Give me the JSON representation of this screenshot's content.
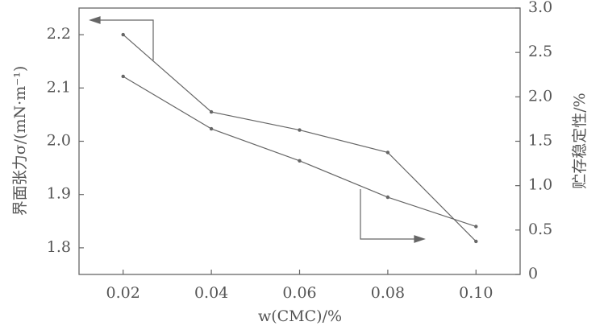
{
  "chart_data": {
    "type": "line",
    "x_label": "w(CMC)/%",
    "y_label": "界面张力σ/(mN·m⁻¹)",
    "y2_label": "贮存稳定性/%",
    "x": [
      0.02,
      0.04,
      0.06,
      0.08,
      0.1
    ],
    "xlim": [
      0.01,
      0.11
    ],
    "xticks": [
      0.02,
      0.04,
      0.06,
      0.08,
      {
        "value": 0.1,
        "label": "0.10"
      }
    ],
    "ylim": [
      1.75,
      2.25
    ],
    "yticks": [
      1.8,
      1.9,
      {
        "value": 2,
        "label": "2.0"
      },
      2.1,
      2.2
    ],
    "y2lim": [
      0,
      3
    ],
    "y2ticks": [
      0,
      0.5,
      {
        "value": 1,
        "label": "1.0"
      },
      1.5,
      {
        "value": 2,
        "label": "2.0"
      },
      2.5,
      {
        "value": 3,
        "label": "3.0"
      }
    ],
    "series": [
      {
        "color": "#666666",
        "values": [
          2.2,
          2.055,
          2.021,
          1.979,
          1.812
        ]
      },
      {
        "color": "#666666",
        "axis": "y2",
        "values": [
          2.23,
          1.64,
          1.28,
          0.87,
          0.54
        ]
      }
    ]
  }
}
